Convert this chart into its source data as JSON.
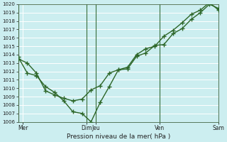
{
  "xlabel": "Pression niveau de la mer( hPa )",
  "ylim": [
    1006,
    1020
  ],
  "xlim": [
    0,
    22
  ],
  "yticks": [
    1006,
    1007,
    1008,
    1009,
    1010,
    1011,
    1012,
    1013,
    1014,
    1015,
    1016,
    1017,
    1018,
    1019,
    1020
  ],
  "bg_color": "#cceef0",
  "grid_color": "#ffffff",
  "line_color": "#2d6628",
  "vline_color": "#3a6e3a",
  "vline_positions": [
    0,
    7.5,
    8.5,
    15.5,
    22
  ],
  "xtick_positions": [
    0.5,
    7.5,
    8.5,
    15.5,
    22
  ],
  "xtick_labels": [
    "Mer",
    "Dim",
    "Jeu",
    "Ven",
    "Sam"
  ],
  "series1_x": [
    0,
    1,
    2,
    3,
    4,
    5,
    6,
    7,
    8,
    9,
    10,
    11,
    12,
    13,
    14,
    15,
    16,
    17,
    18,
    19,
    20,
    21,
    22
  ],
  "series1_y": [
    1013.5,
    1013.0,
    1011.8,
    1009.7,
    1009.2,
    1008.8,
    1008.5,
    1008.7,
    1009.8,
    1010.3,
    1011.8,
    1012.2,
    1012.3,
    1013.8,
    1014.2,
    1015.1,
    1015.2,
    1016.5,
    1017.1,
    1018.2,
    1019.0,
    1020.0,
    1019.5
  ],
  "series2_x": [
    0,
    1,
    2,
    3,
    4,
    5,
    6,
    7,
    8,
    9,
    10,
    11,
    12,
    13,
    14,
    15,
    16,
    17,
    18,
    19,
    20,
    21,
    22
  ],
  "series2_y": [
    1013.7,
    1011.8,
    1011.5,
    1010.2,
    1009.5,
    1008.5,
    1007.2,
    1007.0,
    1006.0,
    1008.3,
    1010.2,
    1012.2,
    1012.5,
    1014.0,
    1014.7,
    1015.0,
    1016.2,
    1016.9,
    1017.8,
    1018.8,
    1019.3,
    1020.2,
    1019.3
  ],
  "marker_size": 2.5,
  "linewidth": 1.0
}
